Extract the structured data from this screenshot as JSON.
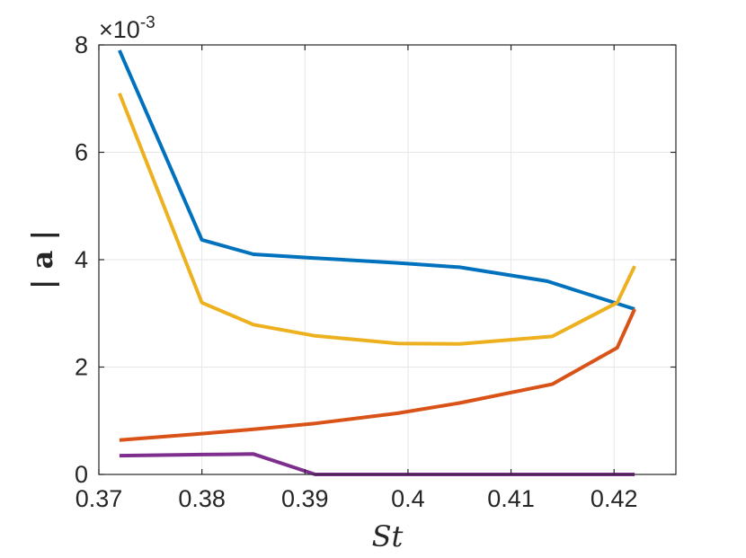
{
  "chart_data": {
    "type": "line",
    "xlabel": "St",
    "ylabel": "| a |",
    "y_exponent": "-3",
    "y_exponent_prefix": "×10",
    "xlim": [
      0.37,
      0.426
    ],
    "ylim": [
      0,
      8
    ],
    "xticks": [
      0.37,
      0.38,
      0.39,
      0.4,
      0.41,
      0.42
    ],
    "xtick_labels": [
      "0.37",
      "0.38",
      "0.39",
      "0.4",
      "0.41",
      "0.42"
    ],
    "yticks": [
      0,
      2,
      4,
      6,
      8
    ],
    "ytick_labels": [
      "0",
      "2",
      "4",
      "6",
      "8"
    ],
    "grid": true,
    "series": [
      {
        "color": "#0072BD",
        "points": [
          [
            0.372,
            7.9
          ],
          [
            0.38,
            4.37
          ],
          [
            0.385,
            4.1
          ],
          [
            0.391,
            4.03
          ],
          [
            0.399,
            3.94
          ],
          [
            0.405,
            3.86
          ],
          [
            0.4135,
            3.6
          ],
          [
            0.422,
            3.08
          ]
        ]
      },
      {
        "color": "#EDB120",
        "points": [
          [
            0.372,
            7.1
          ],
          [
            0.38,
            3.2
          ],
          [
            0.385,
            2.79
          ],
          [
            0.391,
            2.58
          ],
          [
            0.399,
            2.44
          ],
          [
            0.405,
            2.43
          ],
          [
            0.414,
            2.57
          ],
          [
            0.4203,
            3.2
          ],
          [
            0.422,
            3.88
          ]
        ]
      },
      {
        "color": "#D95319",
        "points": [
          [
            0.372,
            0.64
          ],
          [
            0.38,
            0.76
          ],
          [
            0.385,
            0.84
          ],
          [
            0.391,
            0.95
          ],
          [
            0.399,
            1.14
          ],
          [
            0.405,
            1.33
          ],
          [
            0.414,
            1.68
          ],
          [
            0.4203,
            2.36
          ],
          [
            0.422,
            3.08
          ]
        ]
      },
      {
        "color": "#7E2F8E",
        "points": [
          [
            0.372,
            0.35
          ],
          [
            0.38,
            0.37
          ],
          [
            0.385,
            0.38
          ],
          [
            0.391,
            0.0
          ],
          [
            0.399,
            0.0
          ],
          [
            0.405,
            0.0
          ],
          [
            0.414,
            0.0
          ],
          [
            0.4203,
            0.0
          ],
          [
            0.422,
            0.0
          ]
        ]
      }
    ]
  }
}
